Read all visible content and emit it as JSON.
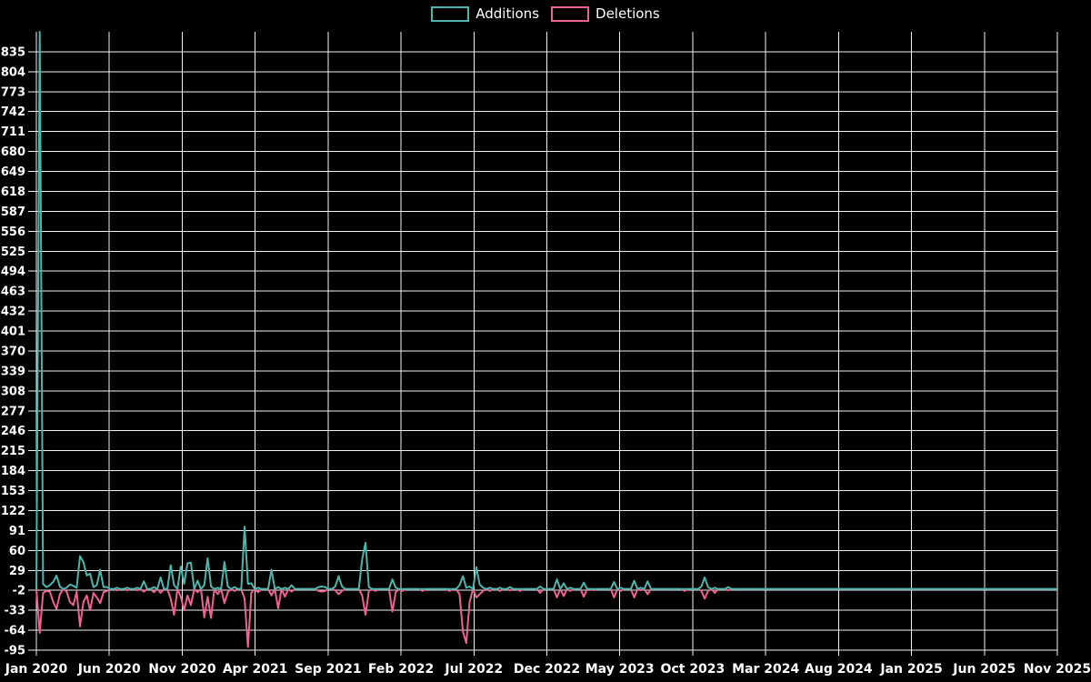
{
  "legend": {
    "additions_label": "Additions",
    "deletions_label": "Deletions"
  },
  "colors": {
    "background": "#000000",
    "grid": "#f2f2f2",
    "text": "#ffffff",
    "additions": "#4db6ac",
    "deletions": "#f06292"
  },
  "chart_data": {
    "type": "line",
    "title": "",
    "xlabel": "",
    "ylabel": "",
    "legend_position": "top-center",
    "grid": true,
    "x_tick_labels": [
      "Jan 2020",
      "Jun 2020",
      "Nov 2020",
      "Apr 2021",
      "Sep 2021",
      "Feb 2022",
      "Jul 2022",
      "Dec 2022",
      "May 2023",
      "Oct 2023",
      "Mar 2024",
      "Aug 2024",
      "Jan 2025",
      "Jun 2025",
      "Nov 2025"
    ],
    "y_tick_values": [
      835,
      804,
      773,
      742,
      711,
      680,
      649,
      618,
      587,
      556,
      525,
      494,
      463,
      432,
      401,
      370,
      339,
      308,
      277,
      246,
      215,
      184,
      153,
      122,
      91,
      60,
      29,
      -2,
      -33,
      -64,
      -95
    ],
    "ylim": [
      -95,
      866
    ],
    "total_weeks": 305,
    "series": [
      {
        "name": "Additions",
        "color": "#4db6ac"
      },
      {
        "name": "Deletions",
        "color": "#f06292"
      }
    ],
    "note": "weekly points; weeks not listed are 0 for both series; format [week_index, additions, deletions]",
    "nonzero_weeks": [
      [
        1,
        866,
        -68
      ],
      [
        2,
        8,
        -6
      ],
      [
        3,
        3,
        -3
      ],
      [
        4,
        6,
        -4
      ],
      [
        5,
        11,
        -20
      ],
      [
        6,
        21,
        -31
      ],
      [
        7,
        4,
        -8
      ],
      [
        9,
        2,
        -4
      ],
      [
        10,
        7,
        -20
      ],
      [
        11,
        5,
        -25
      ],
      [
        12,
        2,
        -4
      ],
      [
        13,
        51,
        -58
      ],
      [
        14,
        42,
        -20
      ],
      [
        15,
        21,
        -10
      ],
      [
        16,
        24,
        -33
      ],
      [
        17,
        3,
        -6
      ],
      [
        18,
        6,
        -13
      ],
      [
        19,
        30,
        -22
      ],
      [
        20,
        3,
        -5
      ],
      [
        21,
        3,
        -3
      ],
      [
        24,
        2,
        -2
      ],
      [
        27,
        2,
        -2
      ],
      [
        30,
        2,
        -2
      ],
      [
        32,
        12,
        -4
      ],
      [
        35,
        3,
        -5
      ],
      [
        37,
        18,
        -6
      ],
      [
        40,
        37,
        -15
      ],
      [
        41,
        6,
        -40
      ],
      [
        43,
        35,
        -12
      ],
      [
        44,
        8,
        -33
      ],
      [
        45,
        40,
        -10
      ],
      [
        46,
        41,
        -25
      ],
      [
        48,
        13,
        -5
      ],
      [
        50,
        6,
        -44
      ],
      [
        51,
        48,
        -12
      ],
      [
        52,
        4,
        -45
      ],
      [
        54,
        2,
        -8
      ],
      [
        56,
        42,
        -22
      ],
      [
        57,
        4,
        -5
      ],
      [
        59,
        3,
        -3
      ],
      [
        62,
        97,
        -15
      ],
      [
        63,
        8,
        -90
      ],
      [
        64,
        9,
        -6
      ],
      [
        66,
        2,
        -5
      ],
      [
        70,
        30,
        -10
      ],
      [
        72,
        3,
        -30
      ],
      [
        74,
        2,
        -12
      ],
      [
        76,
        6,
        -4
      ],
      [
        84,
        3,
        -3
      ],
      [
        85,
        4,
        -4
      ],
      [
        86,
        3,
        -3
      ],
      [
        89,
        4,
        -2
      ],
      [
        90,
        20,
        -8
      ],
      [
        91,
        4,
        -3
      ],
      [
        97,
        46,
        -10
      ],
      [
        98,
        72,
        -40
      ],
      [
        99,
        3,
        -3
      ],
      [
        101,
        0,
        -3
      ],
      [
        106,
        15,
        -35
      ],
      [
        107,
        2,
        -5
      ],
      [
        109,
        0,
        -3
      ],
      [
        115,
        0,
        -3
      ],
      [
        123,
        0,
        -3
      ],
      [
        126,
        6,
        -8
      ],
      [
        127,
        20,
        -66
      ],
      [
        128,
        2,
        -84
      ],
      [
        129,
        4,
        -20
      ],
      [
        131,
        34,
        -13
      ],
      [
        132,
        7,
        -8
      ],
      [
        133,
        2,
        -3
      ],
      [
        135,
        2,
        -3
      ],
      [
        138,
        2,
        -3
      ],
      [
        141,
        3,
        -2
      ],
      [
        144,
        0,
        -3
      ],
      [
        150,
        4,
        -6
      ],
      [
        155,
        15,
        -13
      ],
      [
        157,
        9,
        -11
      ],
      [
        159,
        2,
        -3
      ],
      [
        163,
        10,
        -12
      ],
      [
        166,
        0,
        -2
      ],
      [
        172,
        11,
        -13
      ],
      [
        174,
        2,
        -3
      ],
      [
        178,
        13,
        -13
      ],
      [
        180,
        2,
        -2
      ],
      [
        182,
        12,
        -8
      ],
      [
        193,
        0,
        -3
      ],
      [
        198,
        4,
        -3
      ],
      [
        199,
        18,
        -15
      ],
      [
        200,
        3,
        -3
      ],
      [
        202,
        2,
        -6
      ],
      [
        206,
        3,
        -2
      ]
    ]
  }
}
